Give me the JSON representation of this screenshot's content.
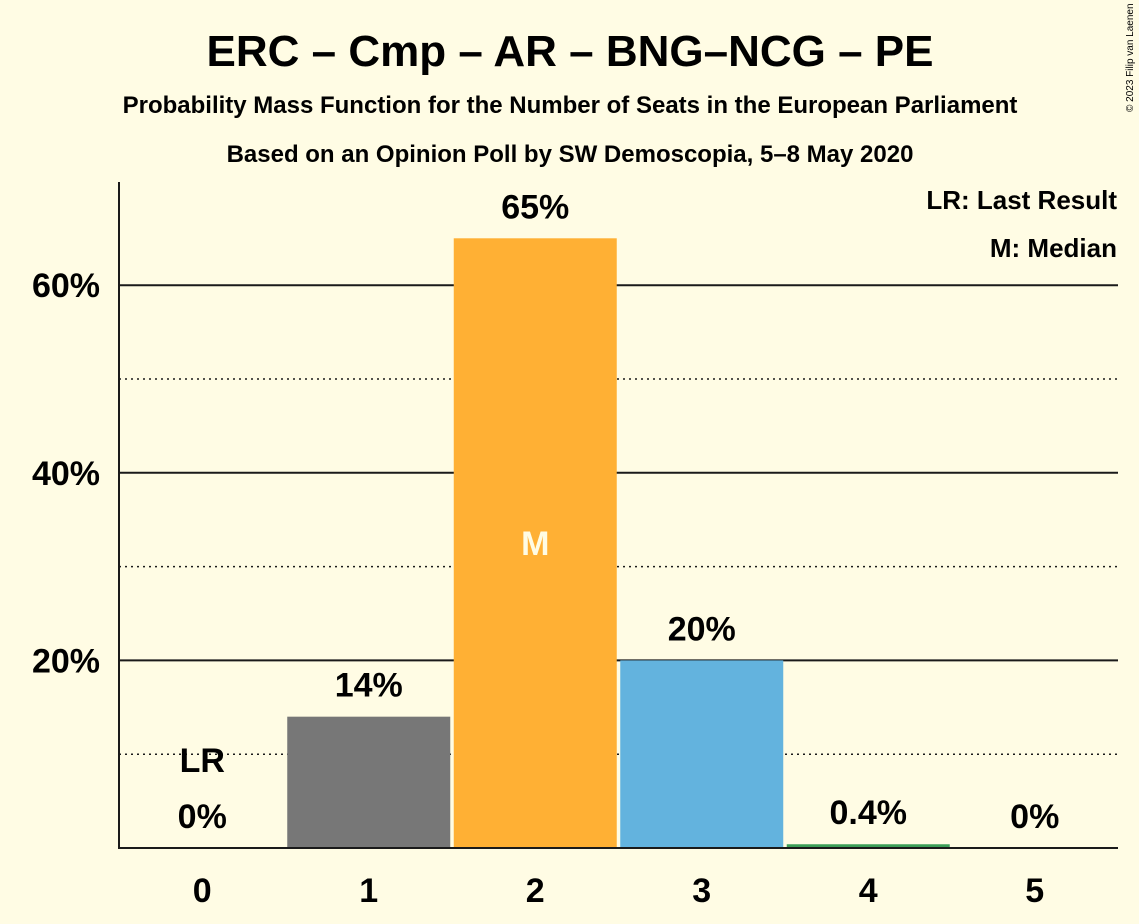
{
  "title": "ERC – Cmp – AR – BNG–NCG – PE",
  "subtitle1": "Probability Mass Function for the Number of Seats in the European Parliament",
  "subtitle2": "Based on an Opinion Poll by SW Demoscopia, 5–8 May 2020",
  "copyright": "© 2023 Filip van Laenen",
  "legend": {
    "last_result": "LR: Last Result",
    "median": "M: Median"
  },
  "colors": {
    "background": "#FFFCE4",
    "bar_colors": [
      "#777777",
      "#777777",
      "#FFB034",
      "#63B3DE",
      "#3C9E58",
      "#777777"
    ],
    "median_text": "#FFFCE4"
  },
  "chart_data": {
    "type": "bar",
    "categories": [
      "0",
      "1",
      "2",
      "3",
      "4",
      "5"
    ],
    "values": [
      0,
      14,
      65,
      20,
      0.4,
      0
    ],
    "value_labels": [
      "0%",
      "14%",
      "65%",
      "20%",
      "0.4%",
      "0%"
    ],
    "ylim": [
      0,
      70
    ],
    "yticks": [
      20,
      40,
      60
    ],
    "ytick_labels": [
      "20%",
      "40%",
      "60%"
    ],
    "minor_gridlines": [
      10,
      30,
      50
    ],
    "last_result_category": "0",
    "last_result_label": "LR",
    "median_category": "2",
    "median_label": "M",
    "xlabel": "",
    "ylabel": "",
    "grid": true,
    "legend_position": "top-right"
  }
}
